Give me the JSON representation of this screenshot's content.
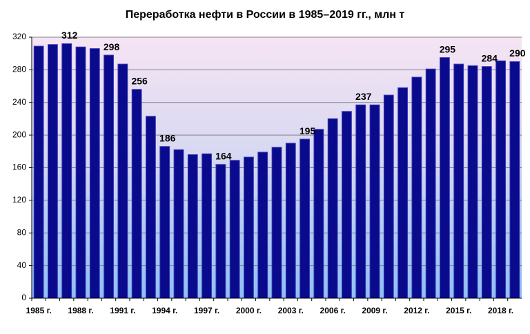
{
  "chart_data": {
    "type": "bar",
    "title": "Переработка нефти в России в 1985–2019 гг., млн т",
    "categories": [
      "1985 г.",
      null,
      null,
      "1988 г.",
      null,
      null,
      "1991 г.",
      null,
      null,
      "1994 г.",
      null,
      null,
      "1997 г.",
      null,
      null,
      "2000 г.",
      null,
      null,
      "2003 г.",
      null,
      null,
      "2006 г.",
      null,
      null,
      "2009 г.",
      null,
      null,
      "2012 г.",
      null,
      null,
      "2015 г.",
      null,
      null,
      "2018 г.",
      null
    ],
    "values": [
      309,
      311,
      312,
      308,
      306,
      298,
      287,
      256,
      223,
      186,
      182,
      176,
      177,
      164,
      169,
      173,
      179,
      185,
      190,
      195,
      207,
      220,
      229,
      237,
      237,
      249,
      258,
      271,
      281,
      295,
      287,
      285,
      284,
      291,
      290
    ],
    "value_labels": [
      null,
      null,
      "312",
      null,
      null,
      "298",
      null,
      "256",
      null,
      "186",
      null,
      null,
      null,
      "164",
      null,
      null,
      null,
      null,
      null,
      "195",
      null,
      null,
      null,
      "237",
      null,
      null,
      null,
      null,
      null,
      "295",
      null,
      null,
      "284",
      null,
      "290"
    ],
    "color": "#0a0a8c",
    "ylim": [
      0,
      320
    ],
    "yticks": [
      0,
      40,
      80,
      120,
      160,
      200,
      240,
      280,
      320
    ],
    "grid": true
  }
}
